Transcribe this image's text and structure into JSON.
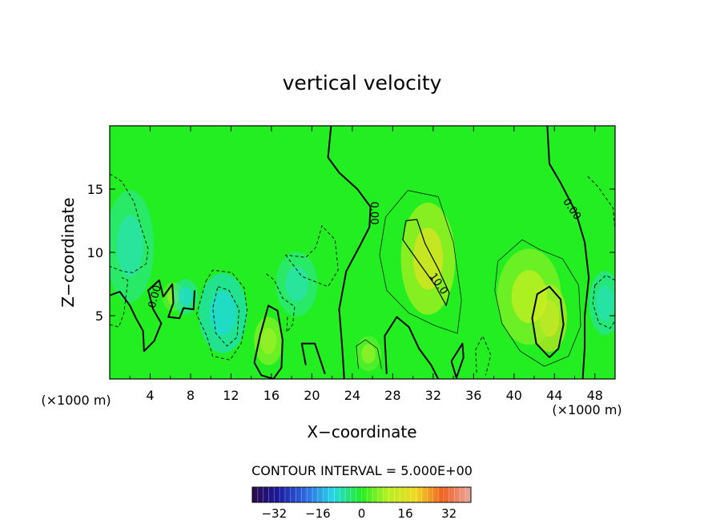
{
  "chart_data": {
    "type": "heatmap",
    "title": "vertical velocity",
    "xlabel": "X−coordinate",
    "ylabel": "Z−coordinate",
    "x_unit_left": "(×1000 m)",
    "x_unit_right": "(×1000 m)",
    "xlim": [
      0,
      50
    ],
    "ylim": [
      0,
      20
    ],
    "xticks": [
      4,
      8,
      12,
      16,
      20,
      24,
      28,
      32,
      36,
      40,
      44,
      48
    ],
    "yticks": [
      5,
      10,
      15
    ],
    "contour_interval_label": "CONTOUR INTERVAL = 5.000E+00",
    "contour_labels": [
      {
        "text": "0.00",
        "x": 26.1,
        "y": 13.1,
        "rotate": 90
      },
      {
        "text": "10.0",
        "x": 32.5,
        "y": 7.5,
        "rotate": 55
      },
      {
        "text": "0.00",
        "x": 45.7,
        "y": 13.4,
        "rotate": 55
      },
      {
        "text": "0.00",
        "x": 4.5,
        "y": 6.5,
        "rotate": -75
      }
    ],
    "colorbar": {
      "range": [
        -40,
        40
      ],
      "ticks": [
        -32,
        -16,
        0,
        16,
        32
      ],
      "tick_labels": [
        "−32",
        "−16",
        "0",
        "16",
        "32"
      ]
    },
    "features": [
      {
        "kind": "updraft",
        "x": 43.5,
        "z": 4.8,
        "peak": 16
      },
      {
        "kind": "updraft",
        "x": 31.5,
        "z": 9.5,
        "peak": 12
      },
      {
        "kind": "updraft",
        "x": 41.5,
        "z": 6.5,
        "peak": 9
      },
      {
        "kind": "updraft",
        "x": 15.7,
        "z": 3.0,
        "peak": 6
      },
      {
        "kind": "updraft",
        "x": 25.6,
        "z": 2.0,
        "peak": 5
      },
      {
        "kind": "updraft",
        "x": 6.3,
        "z": 6.5,
        "peak": 5
      },
      {
        "kind": "downdraft",
        "x": 11.2,
        "z": 5.2,
        "peak": -14
      },
      {
        "kind": "downdraft",
        "x": 7.5,
        "z": 6.5,
        "peak": -9
      },
      {
        "kind": "downdraft",
        "x": 49.0,
        "z": 6.0,
        "peak": -8
      },
      {
        "kind": "downdraft",
        "x": 2.0,
        "z": 10.5,
        "peak": -5
      },
      {
        "kind": "downdraft",
        "x": 18.5,
        "z": 7.5,
        "peak": -5
      }
    ]
  }
}
